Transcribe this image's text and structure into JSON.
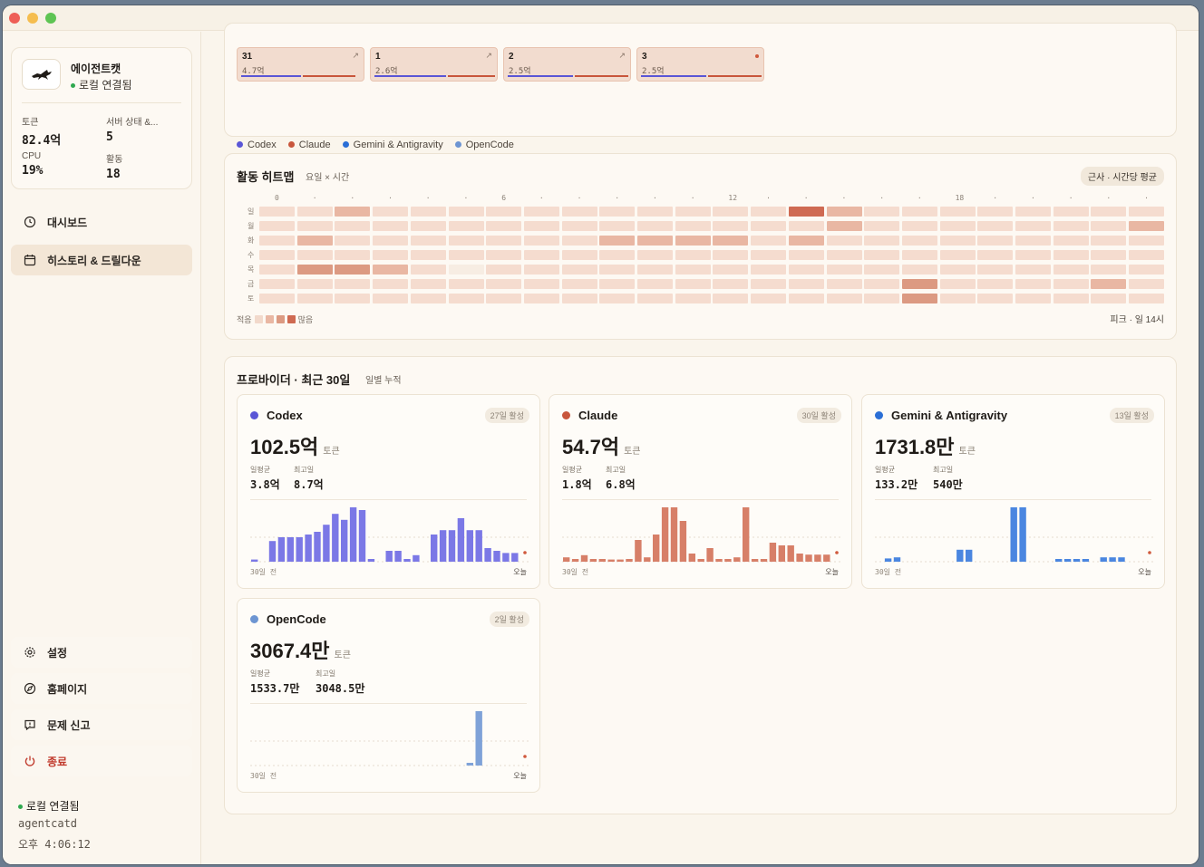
{
  "app": {
    "name": "에이전트캣",
    "connection": "로컬 연결됨",
    "stats": [
      {
        "label": "토큰",
        "value": "82.4억"
      },
      {
        "label": "서버 상태 &...",
        "value": "5"
      },
      {
        "label": "CPU",
        "value": "19%"
      },
      {
        "label": "활동",
        "value": "18"
      }
    ]
  },
  "nav": {
    "dashboard": "대시보드",
    "history": "히스토리 & 드릴다운",
    "settings": "설정",
    "homepage": "홈페이지",
    "report": "문제 신고",
    "quit": "종료"
  },
  "footer": {
    "status": "로컬 연결됨",
    "daemon": "agentcatd",
    "time": "오후 4:06:12"
  },
  "top_strip": {
    "items": [
      {
        "num": "31",
        "sub": "4.7억",
        "marker": "arrow",
        "blue": 0.5,
        "red": 0.45
      },
      {
        "num": "1",
        "sub": "2.6억",
        "marker": "arrow",
        "blue": 0.6,
        "red": 0.4
      },
      {
        "num": "2",
        "sub": "2.5억",
        "marker": "arrow",
        "blue": 0.55,
        "red": 0.45
      },
      {
        "num": "3",
        "sub": "2.5억",
        "marker": "dot",
        "blue": 0.55,
        "red": 0.45
      }
    ],
    "legend": [
      {
        "name": "Codex",
        "color": "#5a56d6"
      },
      {
        "name": "Claude",
        "color": "#c8563c"
      },
      {
        "name": "Gemini & Antigravity",
        "color": "#2b6fd6"
      },
      {
        "name": "OpenCode",
        "color": "#6d95d2"
      }
    ],
    "arrow_glyph": "↗"
  },
  "heatmap": {
    "title": "활동 히트맵",
    "subtitle": "요일 × 시간",
    "pill": "근사 · 시간당 평균",
    "hour_labels": [
      "0",
      "·",
      "·",
      "·",
      "·",
      "·",
      "6",
      "·",
      "·",
      "·",
      "·",
      "·",
      "12",
      "·",
      "·",
      "·",
      "·",
      "·",
      "18",
      "·",
      "·",
      "·",
      "·",
      "·"
    ],
    "days": [
      "일",
      "월",
      "화",
      "수",
      "목",
      "금",
      "토"
    ],
    "levels": [
      [
        1,
        1,
        2,
        1,
        1,
        1,
        1,
        1,
        1,
        1,
        1,
        1,
        1,
        1,
        4,
        2,
        1,
        1,
        1,
        1,
        1,
        1,
        1,
        1
      ],
      [
        1,
        1,
        1,
        1,
        1,
        1,
        1,
        1,
        1,
        1,
        1,
        1,
        1,
        1,
        1,
        2,
        1,
        1,
        1,
        1,
        1,
        1,
        1,
        2
      ],
      [
        1,
        2,
        1,
        1,
        1,
        1,
        1,
        1,
        1,
        2,
        2,
        2,
        2,
        1,
        2,
        1,
        1,
        1,
        1,
        1,
        1,
        1,
        1,
        1
      ],
      [
        1,
        1,
        1,
        1,
        1,
        1,
        1,
        1,
        1,
        1,
        1,
        1,
        1,
        1,
        1,
        1,
        1,
        1,
        1,
        1,
        1,
        1,
        1,
        1
      ],
      [
        1,
        3,
        3,
        2,
        1,
        0,
        1,
        1,
        1,
        1,
        1,
        1,
        1,
        1,
        1,
        1,
        1,
        1,
        1,
        1,
        1,
        1,
        1,
        1
      ],
      [
        1,
        1,
        1,
        1,
        1,
        1,
        1,
        1,
        1,
        1,
        1,
        1,
        1,
        1,
        1,
        1,
        1,
        3,
        1,
        1,
        1,
        1,
        2,
        1
      ],
      [
        1,
        1,
        1,
        1,
        1,
        1,
        1,
        1,
        1,
        1,
        1,
        1,
        1,
        1,
        1,
        1,
        1,
        3,
        1,
        1,
        1,
        1,
        1,
        1
      ]
    ],
    "legend_low": "적음",
    "legend_high": "많음",
    "peak": "피크 · 일 14시"
  },
  "providers": {
    "title": "프로바이더 · 최근 30일",
    "subtitle": "일별 누적",
    "start_label": "30일 전",
    "end_label": "오늘",
    "avg_label": "일평균",
    "max_label": "최고일",
    "unit": "토큰",
    "cards": [
      {
        "name": "Codex",
        "color": "#5a56d6",
        "bar_color": "#7b78e6",
        "badge": "27일 활성",
        "total": "102.5억",
        "avg": "3.8억",
        "max": "8.7억",
        "bars": [
          0.04,
          0,
          0.38,
          0.45,
          0.45,
          0.45,
          0.5,
          0.55,
          0.68,
          0.88,
          0.77,
          1.0,
          0.95,
          0.05,
          0,
          0.2,
          0.2,
          0.05,
          0.12,
          0,
          0.5,
          0.58,
          0.58,
          0.8,
          0.58,
          0.58,
          0.25,
          0.2,
          0.16,
          0.16
        ]
      },
      {
        "name": "Claude",
        "color": "#c8563c",
        "bar_color": "#d77f68",
        "badge": "30일 활성",
        "total": "54.7억",
        "avg": "1.8억",
        "max": "6.8억",
        "bars": [
          0.08,
          0.05,
          0.12,
          0.05,
          0.05,
          0.04,
          0.04,
          0.05,
          0.4,
          0.08,
          0.5,
          1.0,
          1.0,
          0.75,
          0.15,
          0.05,
          0.25,
          0.05,
          0.05,
          0.08,
          1.0,
          0.05,
          0.05,
          0.35,
          0.3,
          0.3,
          0.15,
          0.13,
          0.13,
          0.13
        ]
      },
      {
        "name": "Gemini & Antigravity",
        "color": "#2b6fd6",
        "bar_color": "#4a86e0",
        "badge": "13일 활성",
        "total": "1731.8만",
        "avg": "133.2만",
        "max": "540만",
        "bars": [
          0,
          0.06,
          0.08,
          0,
          0,
          0,
          0,
          0,
          0,
          0.22,
          0.22,
          0,
          0,
          0,
          0,
          1.0,
          1.0,
          0,
          0,
          0,
          0.05,
          0.05,
          0.05,
          0.05,
          0,
          0.08,
          0.08,
          0.08,
          0,
          0
        ]
      },
      {
        "name": "OpenCode",
        "color": "#6d95d2",
        "bar_color": "#7fa2d8",
        "badge": "2일 활성",
        "total": "3067.4만",
        "avg": "1533.7만",
        "max": "3048.5만",
        "bars": [
          0,
          0,
          0,
          0,
          0,
          0,
          0,
          0,
          0,
          0,
          0,
          0,
          0,
          0,
          0,
          0,
          0,
          0,
          0,
          0,
          0,
          0,
          0,
          0,
          0.05,
          1.0,
          0,
          0,
          0,
          0
        ]
      }
    ]
  },
  "colors": {
    "heat": [
      "#f7ede3",
      "#f5dccf",
      "#e9b7a3",
      "#dc9a82",
      "#cf6a52"
    ],
    "today_dot": "#d0593c"
  }
}
